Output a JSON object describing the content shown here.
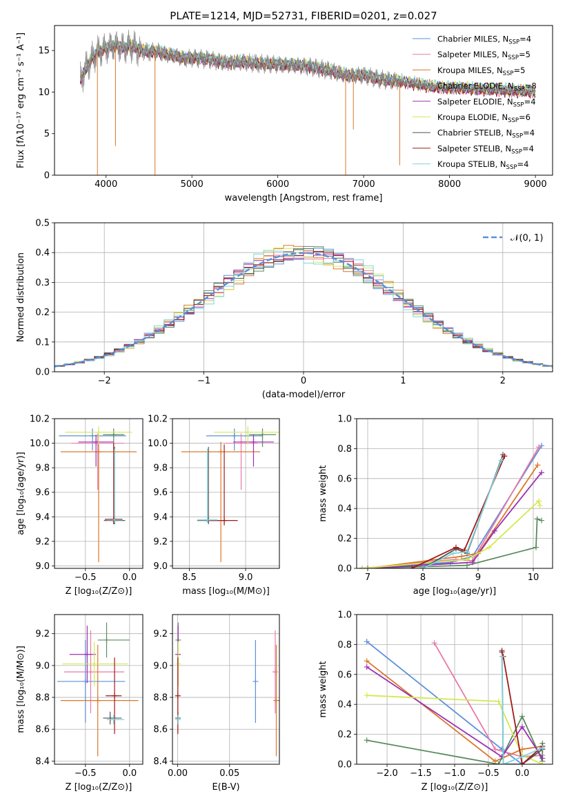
{
  "figure_title": "PLATE=1214, MJD=52731, FIBERID=0201, z=0.027",
  "colors": {
    "chabrier_miles": "#5b8fd9",
    "salpeter_miles": "#e879a8",
    "kroupa_miles": "#d9772a",
    "chabrier_elodie": "#5a8a5e",
    "salpeter_elodie": "#9c2fb0",
    "kroupa_elodie": "#d4e84f",
    "chabrier_stelib": "#555555",
    "salpeter_stelib": "#a01818",
    "kroupa_stelib": "#7fd3dc",
    "normal": "#5b8fd9",
    "grid": "#b0b0b0"
  },
  "chart_data": [
    {
      "type": "line",
      "id": "spectrum",
      "xlabel": "wavelength [Angstrom, rest frame]",
      "ylabel": "Flux [fλ10⁻¹⁷ erg cm⁻² s⁻¹ A⁻¹]",
      "xlim": [
        3400,
        9200
      ],
      "ylim": [
        0,
        18
      ],
      "xticks": [
        "4000",
        "5000",
        "6000",
        "7000",
        "8000",
        "9000"
      ],
      "yticks": [
        "0",
        "5",
        "10",
        "15"
      ],
      "grid": false,
      "legend_position": "top-right",
      "data_wavelength": [
        3700,
        3800,
        3900,
        4000,
        4100,
        4200,
        4300,
        4400,
        4500,
        4600,
        4700,
        4800,
        4900,
        5000,
        5200,
        5400,
        5600,
        5800,
        6000,
        6200,
        6400,
        6600,
        6800,
        7000,
        7200,
        7400,
        7600,
        7800,
        8000,
        8200,
        8400,
        8600,
        8800,
        9000
      ],
      "data_flux": [
        11.5,
        13.5,
        14.8,
        15.2,
        15.6,
        15.3,
        15.5,
        15.0,
        14.8,
        14.9,
        14.5,
        14.4,
        14.0,
        14.1,
        13.9,
        13.5,
        13.6,
        13.4,
        13.3,
        13.2,
        13.0,
        12.6,
        12.0,
        12.0,
        11.5,
        11.3,
        11.0,
        10.6,
        10.5,
        10.4,
        10.3,
        10.2,
        10.1,
        10.0
      ],
      "series": [
        {
          "name": "Chabrier MILES, N",
          "sub": "SSP",
          "tail": "=4",
          "color_key": "chabrier_miles",
          "offset": 0.1
        },
        {
          "name": "Salpeter MILES, N",
          "sub": "SSP",
          "tail": "=5",
          "color_key": "salpeter_miles",
          "offset": -0.1
        },
        {
          "name": "Kroupa MILES, N",
          "sub": "SSP",
          "tail": "=5",
          "color_key": "kroupa_miles",
          "offset": 0.15
        },
        {
          "name": "Chabrier ELODIE, N",
          "sub": "SSP",
          "tail": "=8",
          "color_key": "chabrier_elodie",
          "offset": -0.05
        },
        {
          "name": "Salpeter ELODIE, N",
          "sub": "SSP",
          "tail": "=4",
          "color_key": "salpeter_elodie",
          "offset": 0.05
        },
        {
          "name": "Kroupa ELODIE, N",
          "sub": "SSP",
          "tail": "=6",
          "color_key": "kroupa_elodie",
          "offset": 0.2
        },
        {
          "name": "Chabrier STELIB, N",
          "sub": "SSP",
          "tail": "=4",
          "color_key": "chabrier_stelib",
          "offset": 0.0
        },
        {
          "name": "Salpeter STELIB, N",
          "sub": "SSP",
          "tail": "=4",
          "color_key": "salpeter_stelib",
          "offset": -0.15
        },
        {
          "name": "Kroupa STELIB, N",
          "sub": "SSP",
          "tail": "=4",
          "color_key": "kroupa_stelib",
          "offset": 0.25
        }
      ]
    },
    {
      "type": "step",
      "id": "residual_histogram",
      "xlabel": "(data-model)/error",
      "ylabel": "Normed distribution",
      "xlim": [
        -2.5,
        2.5
      ],
      "ylim": [
        0,
        0.5
      ],
      "xticks": [
        "−2",
        "−1",
        "0",
        "1",
        "2"
      ],
      "yticks": [
        "0.0",
        "0.1",
        "0.2",
        "0.3",
        "0.4",
        "0.5"
      ],
      "grid": true,
      "legend_position": "top-right",
      "normal_label": "𝒩(0, 1)",
      "bin_width": 0.1,
      "variation_amplitudes": [
        0.025,
        -0.02,
        0.03,
        -0.025,
        0.02,
        -0.03,
        0.015,
        -0.015,
        0.035
      ]
    },
    {
      "type": "errorbar",
      "id": "age_vs_metallicity",
      "xlabel": "Z [log₁₀(Z/Z⊙)]",
      "ylabel": "age  [log₁₀(age/yr)]",
      "xlim": [
        -0.85,
        0.15
      ],
      "ylim": [
        8.98,
        10.2
      ],
      "xticks": [
        "−0.5",
        "0.0"
      ],
      "yticks": [
        "9.0",
        "9.2",
        "9.4",
        "9.6",
        "9.8",
        "10.0",
        "10.2"
      ],
      "grid": true,
      "points": [
        {
          "x": -0.42,
          "y": 10.06,
          "xerr": 0.38,
          "yerr_lo": 0.12,
          "yerr_hi": 0.06,
          "color_key": "chabrier_miles"
        },
        {
          "x": -0.36,
          "y": 10.0,
          "xerr": 0.3,
          "yerr_lo": 0.38,
          "yerr_hi": 0.08,
          "color_key": "salpeter_miles"
        },
        {
          "x": -0.35,
          "y": 9.93,
          "xerr": 0.43,
          "yerr_lo": 0.9,
          "yerr_hi": 0.08,
          "color_key": "kroupa_miles"
        },
        {
          "x": -0.18,
          "y": 10.07,
          "xerr": 0.12,
          "yerr_lo": 0.1,
          "yerr_hi": 0.05,
          "color_key": "chabrier_elodie"
        },
        {
          "x": -0.38,
          "y": 10.01,
          "xerr": 0.2,
          "yerr_lo": 0.2,
          "yerr_hi": 0.06,
          "color_key": "salpeter_elodie"
        },
        {
          "x": -0.35,
          "y": 10.09,
          "xerr": 0.38,
          "yerr_lo": 0.1,
          "yerr_hi": 0.05,
          "color_key": "kroupa_elodie"
        },
        {
          "x": -0.17,
          "y": 9.37,
          "xerr": 0.12,
          "yerr_lo": 0.03,
          "yerr_hi": 0.6,
          "color_key": "chabrier_stelib"
        },
        {
          "x": -0.18,
          "y": 9.38,
          "xerr": 0.1,
          "yerr_lo": 0.04,
          "yerr_hi": 0.62,
          "color_key": "salpeter_stelib"
        },
        {
          "x": -0.17,
          "y": 9.375,
          "xerr": 0.09,
          "yerr_lo": 0.02,
          "yerr_hi": 0.58,
          "color_key": "kroupa_stelib"
        }
      ]
    },
    {
      "type": "errorbar",
      "id": "age_vs_mass",
      "xlabel": "mass [log₁₀(M/M⊙)]",
      "ylabel": "",
      "xlim": [
        8.35,
        9.3
      ],
      "ylim": [
        8.98,
        10.2
      ],
      "xticks": [
        "8.5",
        "9.0"
      ],
      "yticks": [
        "9.0",
        "9.2",
        "9.4",
        "9.6",
        "9.8",
        "10.0",
        "10.2"
      ],
      "grid": true,
      "points": [
        {
          "x": 8.9,
          "y": 10.06,
          "xerr": 0.25,
          "yerr_lo": 0.12,
          "yerr_hi": 0.06,
          "color_key": "chabrier_miles"
        },
        {
          "x": 8.96,
          "y": 10.0,
          "xerr": 0.15,
          "yerr_lo": 0.38,
          "yerr_hi": 0.08,
          "color_key": "salpeter_miles"
        },
        {
          "x": 8.78,
          "y": 9.93,
          "xerr": 0.35,
          "yerr_lo": 0.9,
          "yerr_hi": 0.08,
          "color_key": "kroupa_miles"
        },
        {
          "x": 9.15,
          "y": 10.07,
          "xerr": 0.12,
          "yerr_lo": 0.1,
          "yerr_hi": 0.05,
          "color_key": "chabrier_elodie"
        },
        {
          "x": 9.07,
          "y": 10.01,
          "xerr": 0.18,
          "yerr_lo": 0.2,
          "yerr_hi": 0.06,
          "color_key": "salpeter_elodie"
        },
        {
          "x": 9.02,
          "y": 10.09,
          "xerr": 0.3,
          "yerr_lo": 0.1,
          "yerr_hi": 0.05,
          "color_key": "kroupa_elodie"
        },
        {
          "x": 8.67,
          "y": 9.37,
          "xerr": 0.1,
          "yerr_lo": 0.03,
          "yerr_hi": 0.6,
          "color_key": "chabrier_stelib"
        },
        {
          "x": 8.81,
          "y": 9.37,
          "xerr": 0.12,
          "yerr_lo": 0.04,
          "yerr_hi": 0.62,
          "color_key": "salpeter_stelib"
        },
        {
          "x": 8.66,
          "y": 9.375,
          "xerr": 0.09,
          "yerr_lo": 0.02,
          "yerr_hi": 0.58,
          "color_key": "kroupa_stelib"
        }
      ]
    },
    {
      "type": "line",
      "id": "mass_weight_vs_age",
      "xlabel": "age  [log₁₀(age/yr)]",
      "ylabel": "mass weight",
      "xlim": [
        6.8,
        10.35
      ],
      "ylim": [
        0,
        1.0
      ],
      "xticks": [
        "7",
        "8",
        "9",
        "10"
      ],
      "yticks": [
        "0.0",
        "0.2",
        "0.4",
        "0.6",
        "0.8",
        "1.0"
      ],
      "grid": true,
      "series": [
        {
          "color_key": "chabrier_miles",
          "x": [
            6.9,
            8.5,
            8.9,
            10.15
          ],
          "y": [
            0.0,
            0.04,
            0.08,
            0.82
          ]
        },
        {
          "color_key": "salpeter_miles",
          "x": [
            6.9,
            8.6,
            8.9,
            10.1
          ],
          "y": [
            0.0,
            0.06,
            0.05,
            0.81
          ]
        },
        {
          "color_key": "kroupa_miles",
          "x": [
            7.0,
            8.7,
            9.0,
            10.08
          ],
          "y": [
            0.0,
            0.08,
            0.1,
            0.69
          ]
        },
        {
          "color_key": "chabrier_elodie",
          "x": [
            6.9,
            8.8,
            10.05,
            10.07,
            10.15
          ],
          "y": [
            0.0,
            0.02,
            0.14,
            0.33,
            0.32
          ]
        },
        {
          "color_key": "salpeter_elodie",
          "x": [
            7.0,
            8.9,
            9.3,
            10.15
          ],
          "y": [
            0.0,
            0.04,
            0.25,
            0.64
          ]
        },
        {
          "color_key": "kroupa_elodie",
          "x": [
            6.9,
            8.8,
            9.2,
            10.1,
            10.12
          ],
          "y": [
            0.0,
            0.06,
            0.14,
            0.45,
            0.42
          ]
        },
        {
          "color_key": "chabrier_stelib",
          "x": [
            8.0,
            8.6,
            8.8,
            9.45
          ],
          "y": [
            0.0,
            0.13,
            0.1,
            0.76
          ]
        },
        {
          "color_key": "salpeter_stelib",
          "x": [
            7.8,
            8.6,
            8.75,
            9.48
          ],
          "y": [
            0.0,
            0.14,
            0.12,
            0.75
          ]
        },
        {
          "color_key": "kroupa_stelib",
          "x": [
            8.0,
            8.55,
            8.8,
            9.42
          ],
          "y": [
            0.0,
            0.1,
            0.11,
            0.72
          ]
        }
      ]
    },
    {
      "type": "errorbar",
      "id": "mass_vs_metallicity",
      "xlabel": "Z [log₁₀(Z/Z⊙)]",
      "ylabel": "mass [log₁₀(M/M⊙)]",
      "xlim": [
        -0.85,
        0.15
      ],
      "ylim": [
        8.38,
        9.32
      ],
      "xticks": [
        "−0.5",
        "0.0"
      ],
      "yticks": [
        "8.4",
        "8.6",
        "8.8",
        "9.0",
        "9.2"
      ],
      "grid": true,
      "points": [
        {
          "x": -0.5,
          "y": 8.9,
          "xerr_lo": 0.32,
          "xerr_hi": 0.45,
          "yerr": 0.26,
          "color_key": "chabrier_miles"
        },
        {
          "x": -0.44,
          "y": 8.96,
          "xerr_lo": 0.3,
          "xerr_hi": 0.38,
          "yerr": 0.26,
          "color_key": "salpeter_miles"
        },
        {
          "x": -0.36,
          "y": 8.78,
          "xerr_lo": 0.42,
          "xerr_hi": 0.46,
          "yerr": 0.35,
          "color_key": "kroupa_miles"
        },
        {
          "x": -0.26,
          "y": 9.16,
          "xerr_lo": 0.1,
          "xerr_hi": 0.26,
          "yerr": 0.11,
          "color_key": "chabrier_elodie"
        },
        {
          "x": -0.48,
          "y": 9.07,
          "xerr_lo": 0.2,
          "xerr_hi": 0.1,
          "yerr": 0.18,
          "color_key": "salpeter_elodie"
        },
        {
          "x": -0.4,
          "y": 9.01,
          "xerr_lo": 0.36,
          "xerr_hi": 0.38,
          "yerr": 0.14,
          "color_key": "kroupa_elodie"
        },
        {
          "x": -0.22,
          "y": 8.67,
          "xerr_lo": 0.08,
          "xerr_hi": 0.13,
          "yerr": 0.04,
          "color_key": "chabrier_stelib"
        },
        {
          "x": -0.17,
          "y": 8.81,
          "xerr_lo": 0.1,
          "xerr_hi": 0.08,
          "yerr": 0.24,
          "color_key": "salpeter_stelib"
        },
        {
          "x": -0.18,
          "y": 8.66,
          "xerr_lo": 0.08,
          "xerr_hi": 0.12,
          "yerr": 0.03,
          "color_key": "kroupa_stelib"
        }
      ]
    },
    {
      "type": "errorbar",
      "id": "mass_vs_extinction",
      "xlabel": "E(B-V)",
      "ylabel": "",
      "xlim": [
        -0.005,
        0.098
      ],
      "ylim": [
        8.38,
        9.32
      ],
      "xticks": [
        "0.00",
        "0.05"
      ],
      "yticks": [
        "8.4",
        "8.6",
        "8.8",
        "9.0",
        "9.2"
      ],
      "grid": true,
      "points": [
        {
          "x": 0.075,
          "y": 8.9,
          "yerr": 0.26,
          "color_key": "chabrier_miles"
        },
        {
          "x": 0.094,
          "y": 8.96,
          "yerr": 0.26,
          "color_key": "salpeter_miles"
        },
        {
          "x": 0.095,
          "y": 8.78,
          "yerr": 0.35,
          "color_key": "kroupa_miles"
        },
        {
          "x": 0.0005,
          "y": 9.16,
          "yerr": 0.11,
          "color_key": "chabrier_elodie"
        },
        {
          "x": 0.0004,
          "y": 9.07,
          "yerr": 0.18,
          "color_key": "salpeter_elodie"
        },
        {
          "x": 0.0006,
          "y": 9.01,
          "yerr": 0.14,
          "color_key": "kroupa_elodie"
        },
        {
          "x": 0.0003,
          "y": 8.67,
          "yerr": 0.04,
          "color_key": "chabrier_stelib"
        },
        {
          "x": 0.0002,
          "y": 8.81,
          "yerr": 0.24,
          "color_key": "salpeter_stelib"
        },
        {
          "x": 0.0004,
          "y": 8.66,
          "yerr": 0.03,
          "color_key": "kroupa_stelib"
        }
      ]
    },
    {
      "type": "line",
      "id": "mass_weight_vs_metallicity",
      "xlabel": "Z [log₁₀(Z/Z⊙)]",
      "ylabel": "mass weight",
      "xlim": [
        -2.45,
        0.45
      ],
      "ylim": [
        0,
        1.0
      ],
      "xticks": [
        "−2.0",
        "−1.5",
        "−1.0",
        "−0.5",
        "0.0"
      ],
      "yticks": [
        "0.0",
        "0.2",
        "0.4",
        "0.6",
        "0.8",
        "1.0"
      ],
      "grid": true,
      "series": [
        {
          "color_key": "chabrier_miles",
          "x": [
            -2.3,
            -0.3,
            0.0,
            0.3
          ],
          "y": [
            0.82,
            0.1,
            0.0,
            0.1
          ]
        },
        {
          "color_key": "salpeter_miles",
          "x": [
            -1.3,
            -0.4,
            0.0,
            0.3
          ],
          "y": [
            0.81,
            0.1,
            0.05,
            0.06
          ]
        },
        {
          "color_key": "kroupa_miles",
          "x": [
            -2.3,
            -0.4,
            0.0,
            0.3
          ],
          "y": [
            0.69,
            0.02,
            0.1,
            0.12
          ]
        },
        {
          "color_key": "chabrier_elodie",
          "x": [
            -2.3,
            -0.35,
            0.0,
            0.3,
            0.3
          ],
          "y": [
            0.16,
            0.0,
            0.32,
            0.02,
            0.14
          ]
        },
        {
          "color_key": "salpeter_elodie",
          "x": [
            -2.3,
            -0.3,
            0.0,
            0.3
          ],
          "y": [
            0.65,
            0.05,
            0.25,
            0.04
          ]
        },
        {
          "color_key": "kroupa_elodie",
          "x": [
            -2.3,
            -0.35,
            0.0,
            0.3
          ],
          "y": [
            0.46,
            0.42,
            0.06,
            0.0
          ]
        },
        {
          "color_key": "chabrier_stelib",
          "x": [
            -0.3,
            -0.28,
            0.0,
            0.3
          ],
          "y": [
            0.76,
            0.0,
            0.0,
            0.1
          ]
        },
        {
          "color_key": "salpeter_stelib",
          "x": [
            -0.3,
            -0.28,
            0.0,
            0.3
          ],
          "y": [
            0.75,
            0.72,
            0.0,
            0.12
          ]
        },
        {
          "color_key": "kroupa_stelib",
          "x": [
            -0.3,
            -0.28,
            0.0,
            0.3
          ],
          "y": [
            0.72,
            0.0,
            0.05,
            0.11
          ]
        }
      ]
    }
  ]
}
